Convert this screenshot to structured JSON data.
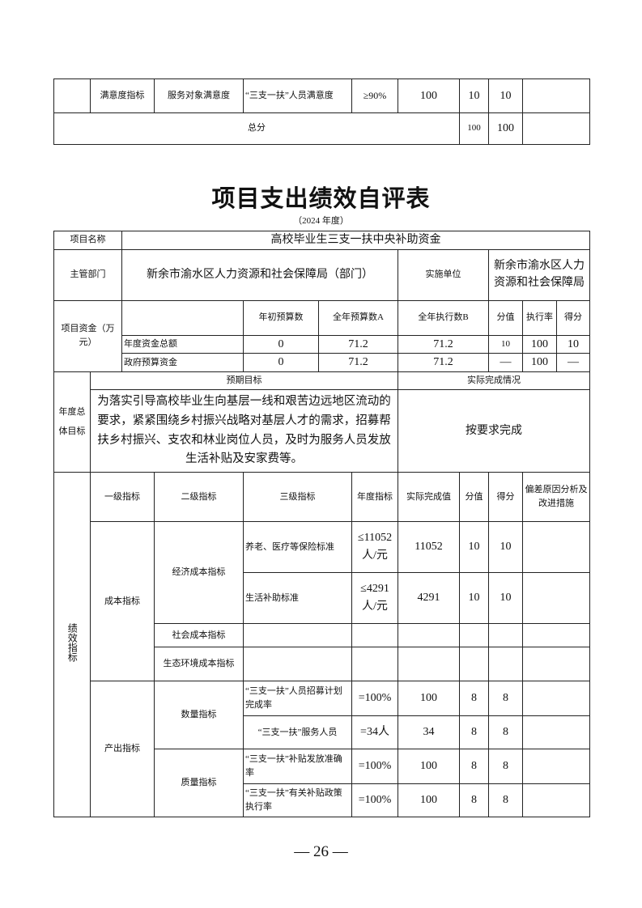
{
  "prev_table": {
    "row": {
      "level2": "满意度指标",
      "level3": "服务对象满意度",
      "indicator": "“三支一扶”人员满意度",
      "target": "≥90%",
      "actual": "100",
      "weight": "10",
      "score": "10",
      "remark": ""
    },
    "total": {
      "label": "总分",
      "weight": "100",
      "score": "100"
    }
  },
  "title": "项目支出绩效自评表",
  "year": "（2024 年度）",
  "project": {
    "name_label": "项目名称",
    "name": "高校毕业生三支一扶中央补助资金",
    "dept_label": "主管部门",
    "dept": "新余市渝水区人力资源和社会保障局（部门）",
    "unit_label": "实施单位",
    "unit": "新余市渝水区人力资源和社会保障局"
  },
  "funds": {
    "label": "项目资金（万元）",
    "headers": [
      "年初预算数",
      "全年预算数A",
      "全年执行数B",
      "分值",
      "执行率",
      "得分"
    ],
    "rows": [
      {
        "name": "年度资金总额",
        "initial": "0",
        "budget": "71.2",
        "executed": "71.2",
        "weight": "10",
        "rate": "100",
        "score": "10"
      },
      {
        "name": "政府预算资金",
        "initial": "0",
        "budget": "71.2",
        "executed": "71.2",
        "weight": "—",
        "rate": "100",
        "score": "—"
      }
    ]
  },
  "goals": {
    "label": "年度总体目标",
    "expected_label": "预期目标",
    "actual_label": "实际完成情况",
    "expected": "为落实引导高校毕业生向基层一线和艰苦边远地区流动的要求，紧紧围绕乡村振兴战略对基层人才的需求，招募帮扶乡村振兴、支农和林业岗位人员，及时为服务人员发放生活补贴及安家费等。",
    "actual": "按要求完成"
  },
  "performance": {
    "label": "绩效指标",
    "headers": [
      "一级指标",
      "二级指标",
      "三级指标",
      "年度指标",
      "实际完成值",
      "分值",
      "得分",
      "偏差原因分析及改进措施"
    ],
    "cost": {
      "level1": "成本指标",
      "economic": "经济成本指标",
      "social": "社会成本指标",
      "eco": "生态环境成本指标",
      "rows": [
        {
          "indicator": "养老、医疗等保险标准",
          "target": "≤11052人/元",
          "actual": "11052",
          "weight": "10",
          "score": "10"
        },
        {
          "indicator": "生活补助标准",
          "target": "≤4291人/元",
          "actual": "4291",
          "weight": "10",
          "score": "10"
        }
      ]
    },
    "output": {
      "level1": "产出指标",
      "quantity": "数量指标",
      "quality": "质量指标",
      "rows": [
        {
          "indicator": "“三支一扶”人员招募计划完成率",
          "target": "=100%",
          "actual": "100",
          "weight": "8",
          "score": "8"
        },
        {
          "indicator": "“三支一扶”服务人员",
          "target": "=34人",
          "actual": "34",
          "weight": "8",
          "score": "8"
        },
        {
          "indicator": "“三支一扶”补贴发放准确率",
          "target": "=100%",
          "actual": "100",
          "weight": "8",
          "score": "8"
        },
        {
          "indicator": "“三支一扶”有关补贴政策执行率",
          "target": "=100%",
          "actual": "100",
          "weight": "8",
          "score": "8"
        }
      ]
    }
  },
  "page_number": "— 26 —"
}
